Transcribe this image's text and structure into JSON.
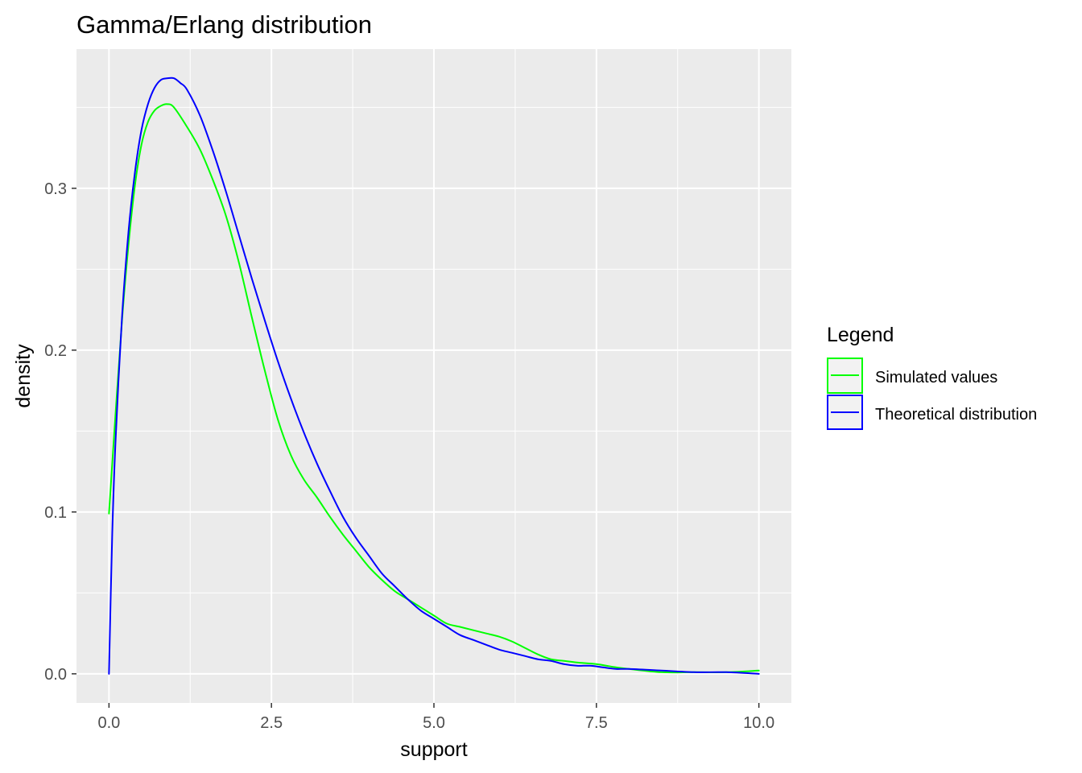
{
  "chart_data": {
    "type": "line",
    "title": "Gamma/Erlang distribution",
    "xlabel": "support",
    "ylabel": "density",
    "xlim": [
      -0.5,
      10.5
    ],
    "ylim": [
      -0.018,
      0.386
    ],
    "x_ticks": [
      0.0,
      2.5,
      5.0,
      7.5,
      10.0
    ],
    "x_tick_labels": [
      "0.0",
      "2.5",
      "5.0",
      "7.5",
      "10.0"
    ],
    "y_ticks": [
      0.0,
      0.1,
      0.2,
      0.3
    ],
    "y_tick_labels": [
      "0.0",
      "0.1",
      "0.2",
      "0.3"
    ],
    "grid": true,
    "background": "#ebebeb",
    "legend": {
      "title": "Legend",
      "position": "right"
    },
    "series": [
      {
        "name": "Simulated values",
        "color": "#00ff00",
        "x": [
          0.0,
          0.1,
          0.2,
          0.3,
          0.4,
          0.5,
          0.6,
          0.7,
          0.8,
          0.9,
          1.0,
          1.2,
          1.4,
          1.6,
          1.8,
          2.0,
          2.2,
          2.4,
          2.6,
          2.8,
          3.0,
          3.2,
          3.4,
          3.6,
          3.8,
          4.0,
          4.2,
          4.4,
          4.6,
          4.8,
          5.0,
          5.2,
          5.4,
          5.6,
          5.8,
          6.0,
          6.2,
          6.4,
          6.6,
          6.8,
          7.0,
          7.2,
          7.5,
          7.8,
          8.0,
          8.5,
          9.0,
          9.5,
          10.0
        ],
        "y": [
          0.099,
          0.16,
          0.218,
          0.265,
          0.302,
          0.327,
          0.341,
          0.348,
          0.351,
          0.352,
          0.35,
          0.338,
          0.324,
          0.305,
          0.283,
          0.254,
          0.22,
          0.187,
          0.157,
          0.135,
          0.12,
          0.109,
          0.097,
          0.086,
          0.076,
          0.066,
          0.058,
          0.051,
          0.046,
          0.041,
          0.036,
          0.031,
          0.029,
          0.027,
          0.025,
          0.023,
          0.02,
          0.016,
          0.012,
          0.009,
          0.008,
          0.007,
          0.006,
          0.004,
          0.003,
          0.001,
          0.001,
          0.001,
          0.002
        ]
      },
      {
        "name": "Theoretical distribution",
        "color": "#0000ff",
        "x": [
          0.0,
          0.05,
          0.1,
          0.2,
          0.3,
          0.4,
          0.5,
          0.6,
          0.7,
          0.8,
          0.9,
          1.0,
          1.1,
          1.2,
          1.4,
          1.6,
          1.8,
          2.0,
          2.2,
          2.4,
          2.6,
          2.8,
          3.0,
          3.2,
          3.4,
          3.6,
          3.8,
          4.0,
          4.2,
          4.4,
          4.6,
          4.8,
          5.0,
          5.2,
          5.4,
          5.6,
          5.8,
          6.0,
          6.2,
          6.4,
          6.6,
          6.8,
          7.0,
          7.2,
          7.4,
          7.6,
          7.8,
          8.0,
          8.5,
          9.0,
          9.5,
          10.0
        ],
        "y": [
          0.0,
          0.086,
          0.143,
          0.22,
          0.273,
          0.31,
          0.336,
          0.352,
          0.362,
          0.367,
          0.368,
          0.368,
          0.365,
          0.361,
          0.345,
          0.323,
          0.298,
          0.271,
          0.244,
          0.218,
          0.193,
          0.17,
          0.149,
          0.13,
          0.113,
          0.097,
          0.084,
          0.073,
          0.062,
          0.054,
          0.046,
          0.039,
          0.034,
          0.029,
          0.024,
          0.021,
          0.018,
          0.015,
          0.013,
          0.011,
          0.009,
          0.008,
          0.006,
          0.005,
          0.005,
          0.004,
          0.003,
          0.003,
          0.002,
          0.001,
          0.001,
          0.0
        ]
      }
    ]
  }
}
